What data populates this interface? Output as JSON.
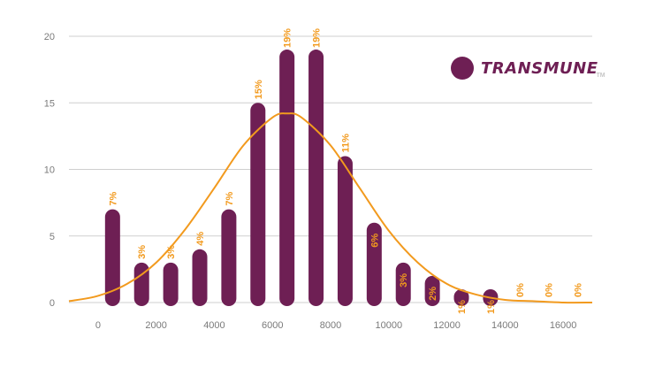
{
  "colors": {
    "bar": "#6e1f54",
    "curve": "#f29a1e",
    "label": "#f29a1e",
    "grid": "#cfcfcf",
    "axis_text": "#7a7a7a",
    "legend_text": "#6e1f54"
  },
  "legend": {
    "name": "TRANSMUNE",
    "sup": "TM"
  },
  "chart_data": {
    "type": "bar",
    "title": "",
    "xlabel": "",
    "ylabel": "",
    "xlim": [
      -1000,
      17000
    ],
    "ylim": [
      0,
      20
    ],
    "xticks": [
      0,
      2000,
      4000,
      6000,
      8000,
      10000,
      12000,
      14000,
      16000
    ],
    "yticks": [
      0,
      5,
      10,
      15,
      20
    ],
    "grid": true,
    "series": [
      {
        "type": "bar",
        "x": [
          500,
          1500,
          2500,
          3500,
          4500,
          5500,
          6500,
          7500,
          8500,
          9500,
          10500,
          11500,
          12500,
          13500,
          14500,
          15500,
          16500
        ],
        "values": [
          7,
          3,
          3,
          4,
          7,
          15,
          19,
          19,
          11,
          6,
          3,
          2,
          1,
          1,
          0,
          0,
          0
        ],
        "labels": [
          "7%",
          "3%",
          "3%",
          "4%",
          "7%",
          "15%",
          "19%",
          "19%",
          "11%",
          "6%",
          "3%",
          "2%",
          "1%",
          "1%",
          "0%",
          "0%",
          "0%"
        ]
      },
      {
        "type": "line",
        "x": [
          -1000,
          0,
          1000,
          2000,
          3000,
          4000,
          5000,
          6000,
          6500,
          7000,
          8000,
          9000,
          10000,
          11000,
          12000,
          13000,
          14000,
          15000,
          16000,
          17000
        ],
        "values": [
          0.1,
          0.5,
          1.4,
          3.0,
          5.5,
          8.6,
          11.8,
          13.9,
          14.2,
          13.9,
          11.8,
          8.6,
          5.4,
          3.0,
          1.4,
          0.6,
          0.2,
          0.1,
          0.0,
          0.0
        ]
      }
    ]
  }
}
